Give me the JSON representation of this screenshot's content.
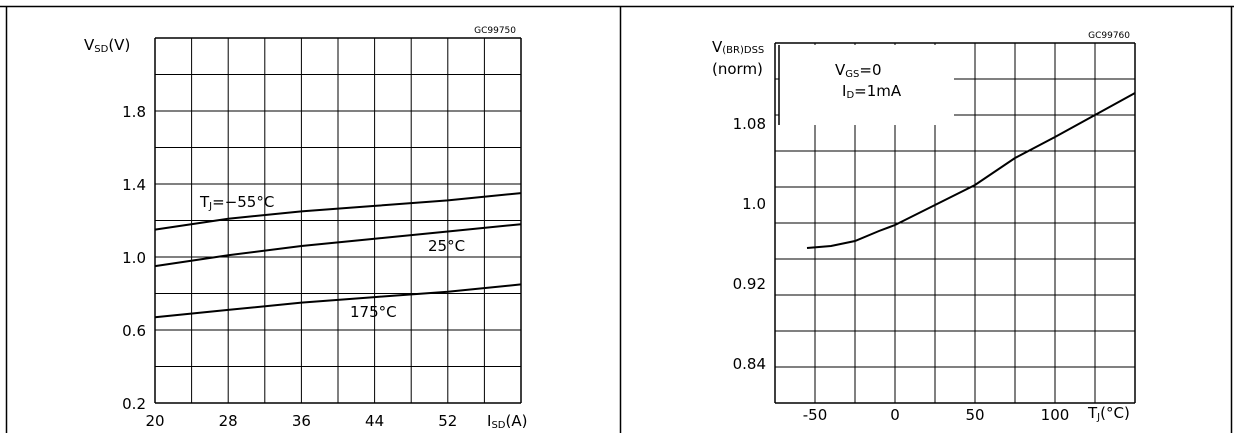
{
  "chart_data": [
    {
      "type": "line",
      "title": "",
      "code": "GC99750",
      "ylabel": {
        "main": "V",
        "sub": "SD",
        "unit": "(V)"
      },
      "xlabel": {
        "main": "I",
        "sub": "SD",
        "unit": "(A)"
      },
      "xlim": [
        20,
        60
      ],
      "ylim": [
        0.2,
        2.2
      ],
      "x_ticks": [
        20,
        28,
        36,
        44,
        52
      ],
      "y_ticks": [
        "0.2",
        "0.6",
        "1.0",
        "1.4",
        "1.8"
      ],
      "grid": true,
      "series": [
        {
          "name": "TJ=−55°C",
          "x": [
            20,
            28,
            36,
            44,
            52,
            60
          ],
          "y": [
            1.15,
            1.21,
            1.25,
            1.28,
            1.31,
            1.35
          ]
        },
        {
          "name": "25°C",
          "x": [
            20,
            28,
            36,
            44,
            52,
            60
          ],
          "y": [
            0.95,
            1.01,
            1.06,
            1.1,
            1.14,
            1.18
          ]
        },
        {
          "name": "175°C",
          "x": [
            20,
            28,
            36,
            44,
            52,
            60
          ],
          "y": [
            0.67,
            0.71,
            0.75,
            0.78,
            0.81,
            0.85
          ]
        }
      ],
      "annotations": [
        {
          "text_main": "T",
          "text_sub": "J",
          "text_rest": "=−55°C",
          "series": 0
        },
        {
          "text_main": "25°C",
          "series": 1
        },
        {
          "text_main": "175°C",
          "series": 2
        }
      ]
    },
    {
      "type": "line",
      "title": "",
      "code": "GC99760",
      "ylabel": {
        "line1_main": "V",
        "line1_sub": "(BR)DSS",
        "line2": "(norm)"
      },
      "xlabel": {
        "main": "T",
        "sub": "J",
        "unit": "(°C)"
      },
      "xlim": [
        -75,
        150
      ],
      "ylim": [
        0.8,
        1.16
      ],
      "x_ticks": [
        "-50",
        "0",
        "50",
        "100"
      ],
      "x_tick_values": [
        -50,
        0,
        50,
        100
      ],
      "y_ticks": [
        "0.84",
        "0.92",
        "1.0",
        "1.08"
      ],
      "y_tick_values": [
        0.84,
        0.92,
        1.0,
        1.08
      ],
      "grid": true,
      "conditions": [
        {
          "main": "V",
          "sub": "GS",
          "rest": "=0"
        },
        {
          "main": "I",
          "sub": "D",
          "rest": "=1mA"
        }
      ],
      "series": [
        {
          "name": "",
          "x": [
            -55,
            -40,
            -25,
            -10,
            0,
            25,
            50,
            75,
            100,
            125,
            150
          ],
          "y": [
            0.955,
            0.957,
            0.962,
            0.972,
            0.978,
            0.998,
            1.018,
            1.045,
            1.066,
            1.088,
            1.11
          ]
        }
      ]
    }
  ]
}
